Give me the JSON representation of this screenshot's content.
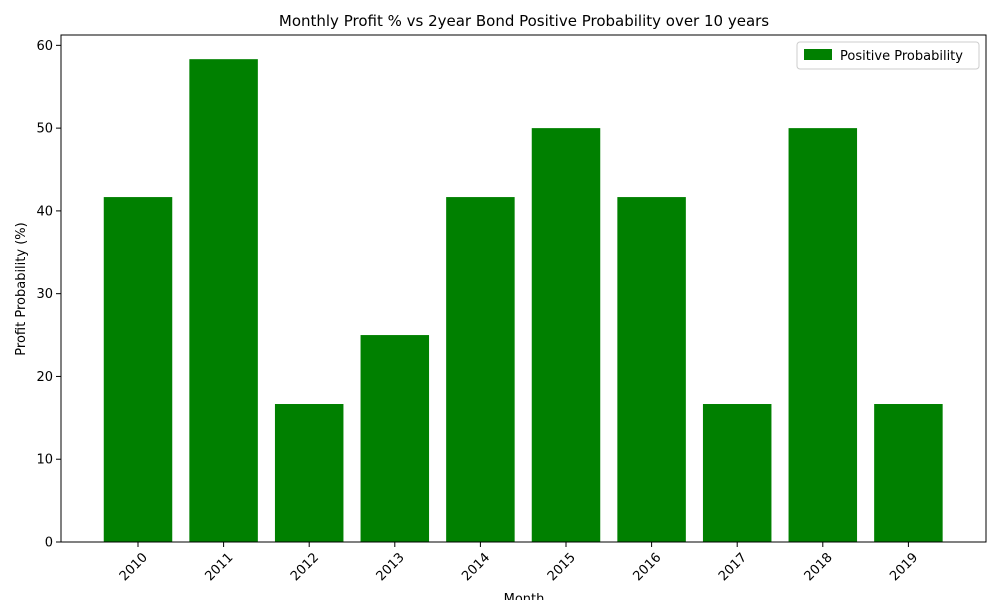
{
  "chart_data": {
    "type": "bar",
    "title": "Monthly Profit % vs 2year Bond Positive Probability over 10 years",
    "xlabel": "Month",
    "ylabel": "Profit Probability (%)",
    "categories": [
      "2010",
      "2011",
      "2012",
      "2013",
      "2014",
      "2015",
      "2016",
      "2017",
      "2018",
      "2019"
    ],
    "series": [
      {
        "name": "Positive Probability",
        "color": "#008000",
        "values": [
          41.67,
          58.33,
          16.67,
          25.0,
          41.67,
          50.0,
          41.67,
          16.67,
          50.0,
          16.67
        ]
      }
    ],
    "ylim": [
      0,
      61.25
    ],
    "yticks": [
      0,
      10,
      20,
      30,
      40,
      50,
      60
    ],
    "grid": false,
    "legend_position": "top-right"
  }
}
